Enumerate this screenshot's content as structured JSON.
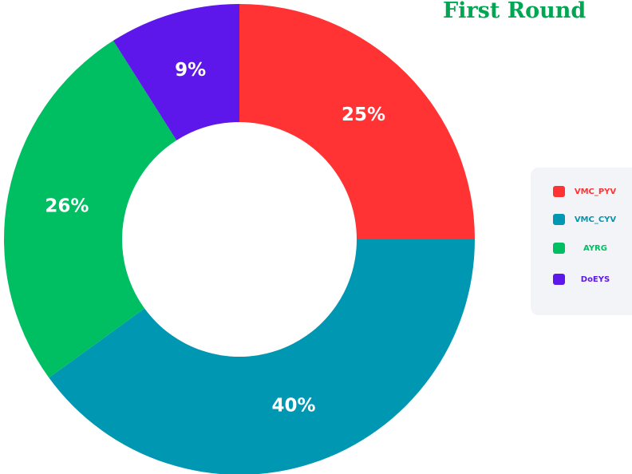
{
  "chart_data": {
    "type": "pie",
    "title": "First Round",
    "categories": [
      "VMC_PYV",
      "VMC_CYV",
      "AYRG",
      "DoEYS"
    ],
    "values": [
      25,
      40,
      26,
      9
    ],
    "value_labels": [
      "25%",
      "40%",
      "26%",
      "9%"
    ],
    "colors": [
      "#ff3333",
      "#0097b2",
      "#00bf63",
      "#5e17eb"
    ],
    "donut": true,
    "legend": "right"
  }
}
